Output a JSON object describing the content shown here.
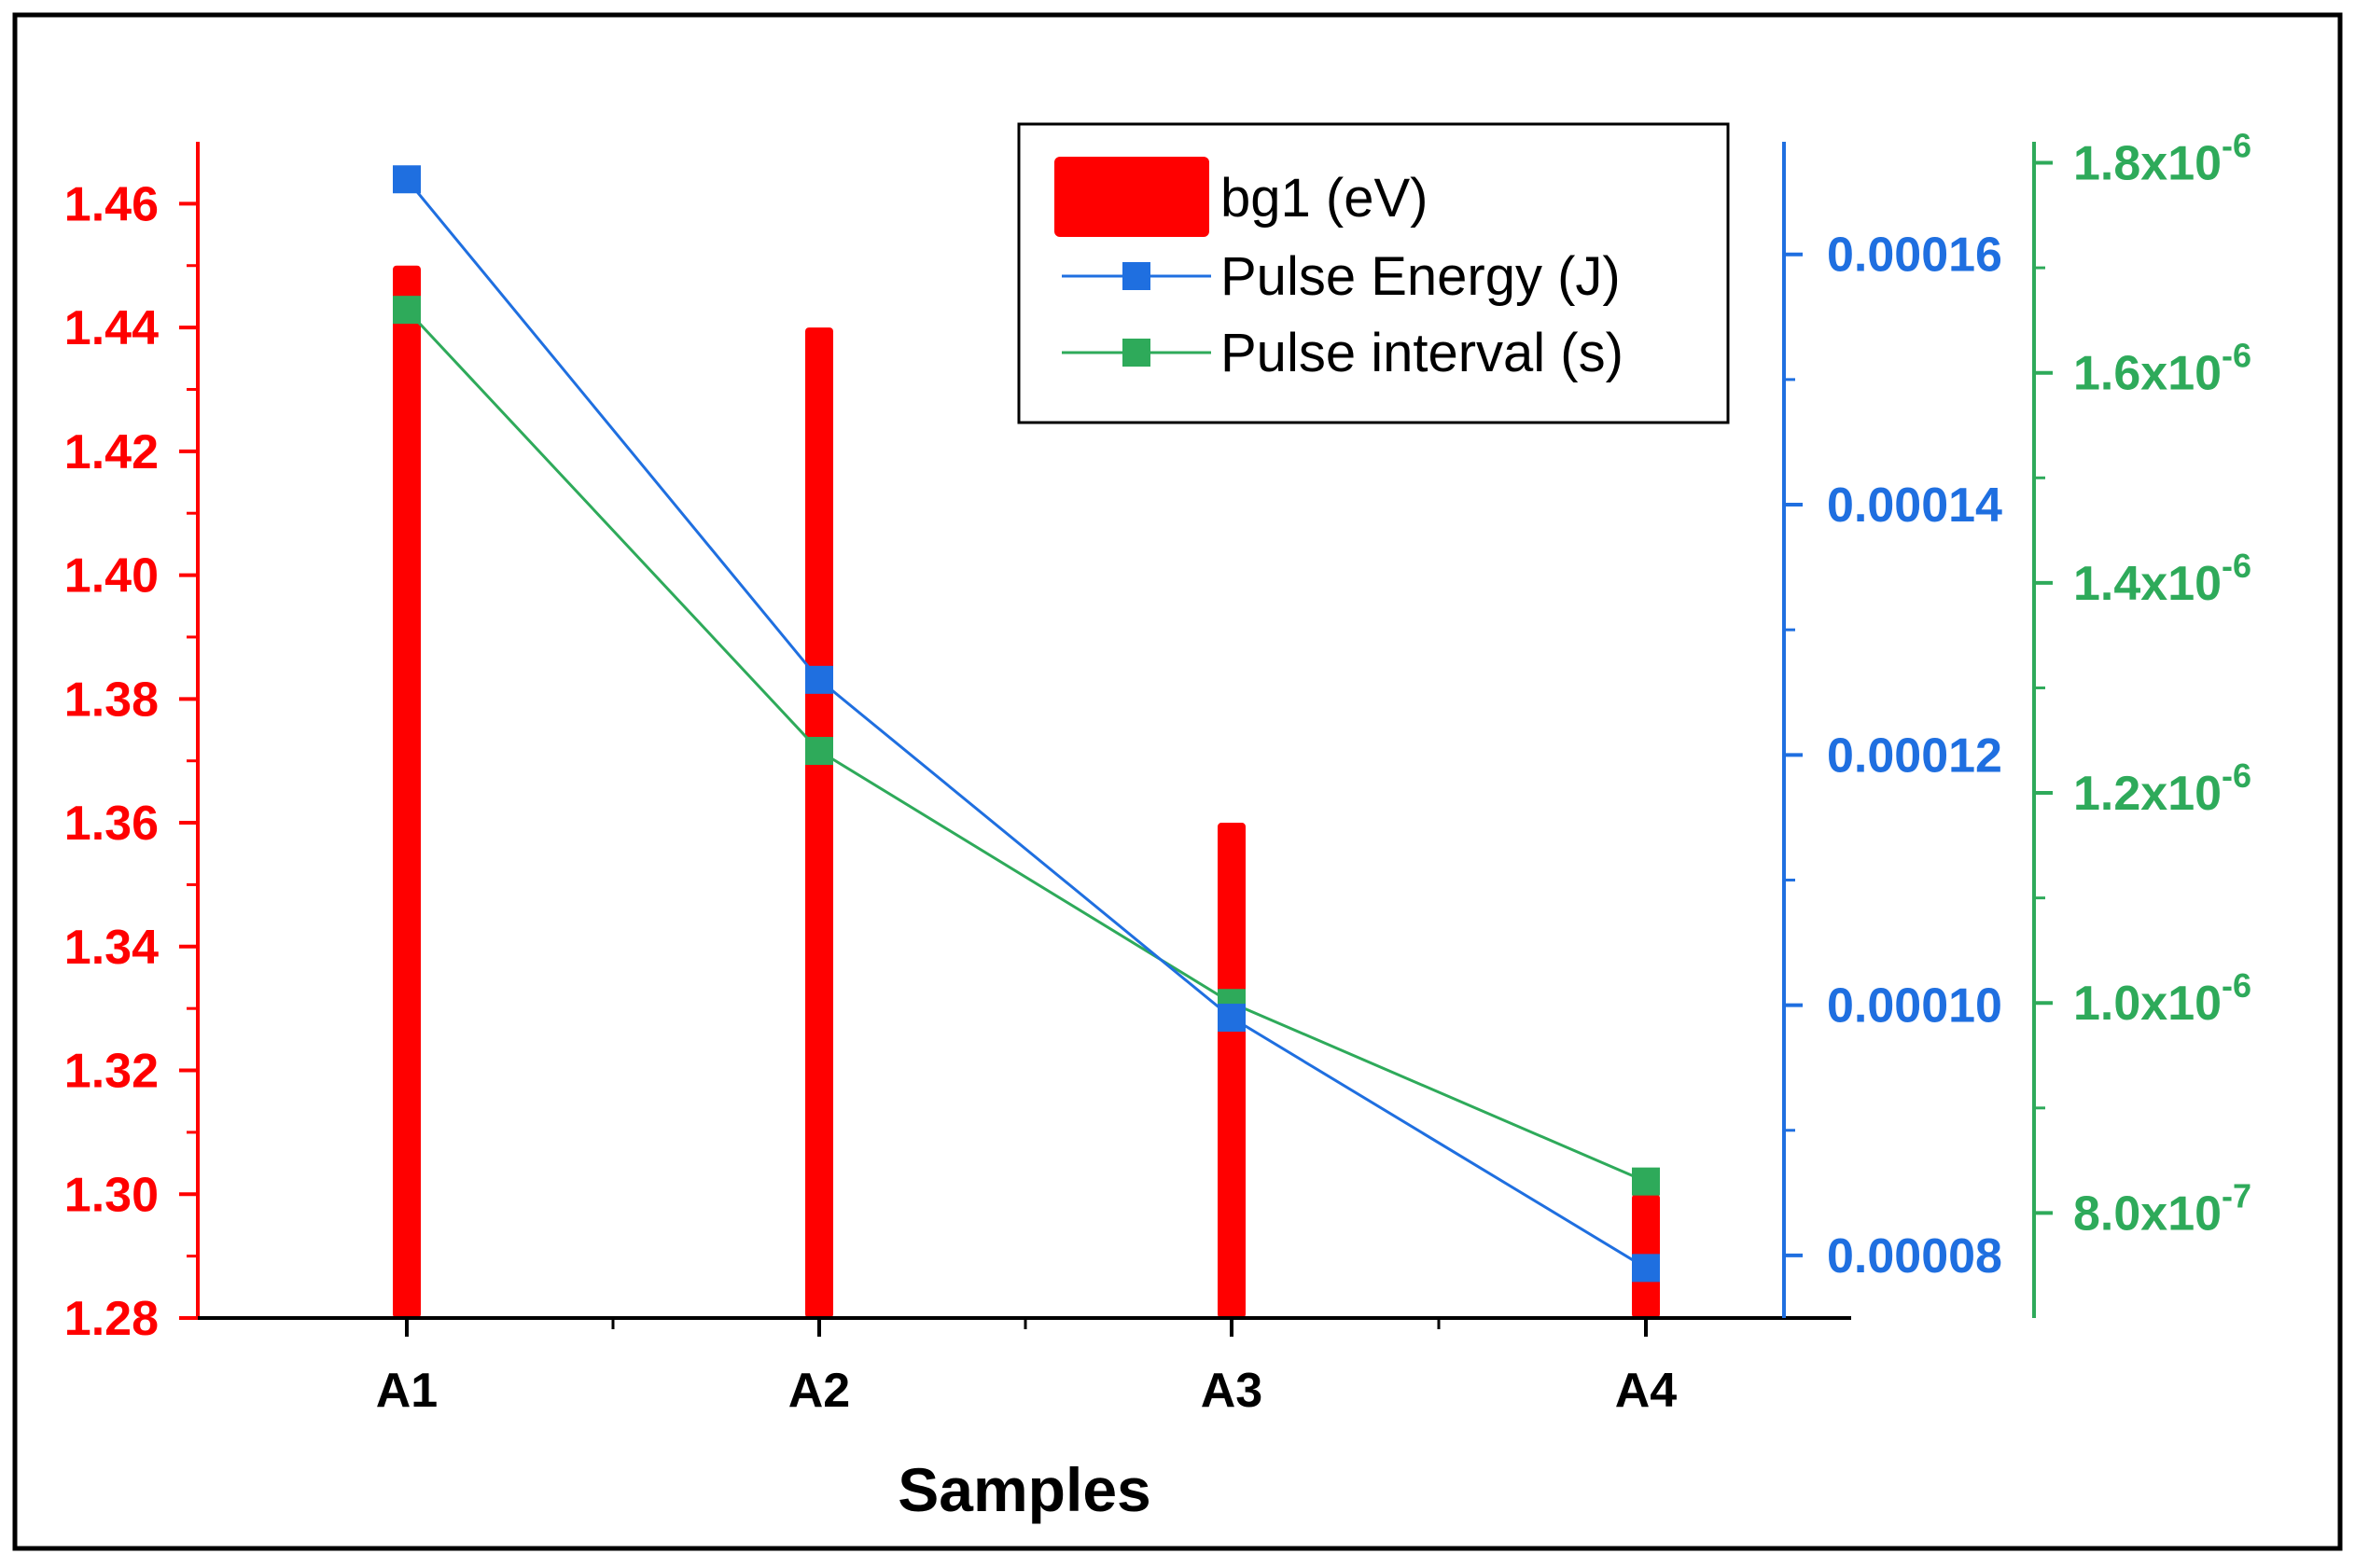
{
  "chart_data": {
    "type": "bar",
    "xlabel": "Samples",
    "categories": [
      "A1",
      "A2",
      "A3",
      "A4"
    ],
    "bar_series": {
      "name": "bg1 (eV)",
      "color": "#ff0000",
      "values": [
        1.45,
        1.44,
        1.36,
        1.3
      ],
      "ylim": [
        1.28,
        1.47
      ],
      "ticks": [
        {
          "value": 1.28,
          "label": "1.28"
        },
        {
          "value": 1.3,
          "label": "1.30"
        },
        {
          "value": 1.32,
          "label": "1.32"
        },
        {
          "value": 1.34,
          "label": "1.34"
        },
        {
          "value": 1.36,
          "label": "1.36"
        },
        {
          "value": 1.38,
          "label": "1.38"
        },
        {
          "value": 1.4,
          "label": "1.40"
        },
        {
          "value": 1.42,
          "label": "1.42"
        },
        {
          "value": 1.44,
          "label": "1.44"
        },
        {
          "value": 1.46,
          "label": "1.46"
        }
      ]
    },
    "line_series": [
      {
        "name": "Pulse Energy (J)",
        "color": "#1f6fe0",
        "values": [
          0.000166,
          0.000126,
          9.9e-05,
          7.9e-05
        ],
        "ylim": [
          7.5e-05,
          0.000169
        ],
        "ticks": [
          {
            "value": 8e-05,
            "label": "0.00008"
          },
          {
            "value": 0.0001,
            "label": "0.00010"
          },
          {
            "value": 0.00012,
            "label": "0.00012"
          },
          {
            "value": 0.00014,
            "label": "0.00014"
          },
          {
            "value": 0.00016,
            "label": "0.00016"
          }
        ],
        "minor_ticks": [
          9e-05,
          0.00011,
          0.00013,
          0.00015
        ]
      },
      {
        "name": "Pulse interval (s)",
        "color": "#2eaa5a",
        "values": [
          1.66e-06,
          1.24e-06,
          1e-06,
          8.3e-07
        ],
        "ylim": [
          7e-07,
          1.82e-06
        ],
        "ticks": [
          {
            "value": 8e-07,
            "mantissa": "8.0x10",
            "exponent": "-7"
          },
          {
            "value": 1e-06,
            "mantissa": "1.0x10",
            "exponent": "-6"
          },
          {
            "value": 1.2e-06,
            "mantissa": "1.2x10",
            "exponent": "-6"
          },
          {
            "value": 1.4e-06,
            "mantissa": "1.4x10",
            "exponent": "-6"
          },
          {
            "value": 1.6e-06,
            "mantissa": "1.6x10",
            "exponent": "-6"
          },
          {
            "value": 1.8e-06,
            "mantissa": "1.8x10",
            "exponent": "-6"
          }
        ],
        "minor_ticks": [
          9e-07,
          1.1e-06,
          1.3e-06,
          1.5e-06,
          1.7e-06
        ]
      }
    ],
    "legend": {
      "position": "top-right",
      "entries": [
        "bg1 (eV)",
        "Pulse Energy (J)",
        "Pulse interval (s)"
      ]
    }
  }
}
